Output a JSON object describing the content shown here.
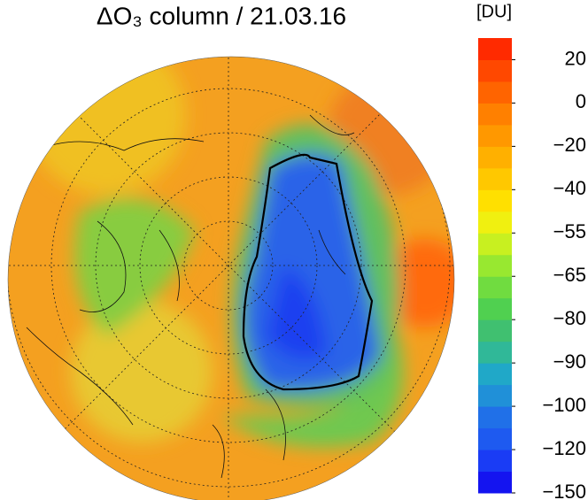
{
  "chart_data": {
    "type": "polar-map",
    "title": "ΔO₃ column / 21.03.16",
    "colorbar_label": "[DU]",
    "colorbar_ticks": [
      {
        "value": -150,
        "label": "−150"
      },
      {
        "value": -120,
        "label": "−120"
      },
      {
        "value": -100,
        "label": "−100"
      },
      {
        "value": -90,
        "label": "−90"
      },
      {
        "value": -80,
        "label": "−80"
      },
      {
        "value": -65,
        "label": "−65"
      },
      {
        "value": -55,
        "label": "−55"
      },
      {
        "value": -40,
        "label": "−40"
      },
      {
        "value": -20,
        "label": "−20"
      },
      0,
      20
    ],
    "colors": [
      "#1414f0",
      "#1a3cf5",
      "#1e5af0",
      "#2070e8",
      "#2090d8",
      "#20a8c8",
      "#30b898",
      "#40c070",
      "#50d050",
      "#70dc40",
      "#98e830",
      "#c8f020",
      "#f0f010",
      "#ffe000",
      "#ffc800",
      "#ffb000",
      "#ff9800",
      "#ff8000",
      "#ff6400",
      "#ff4800",
      "#ff2a00"
    ]
  }
}
